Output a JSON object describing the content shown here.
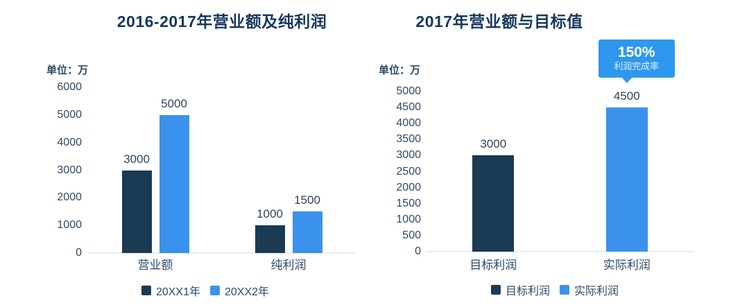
{
  "palette": {
    "background": "#ffffff",
    "title_text": "#17375e",
    "tick_text": "#2c4a6b",
    "data_label_text": "#30435a",
    "axis_line": "#e9ebed",
    "bar_dark_navy": "#1b3a54",
    "bar_light_blue": "#3b92ec",
    "callout_blue": "#2e97ee"
  },
  "chart_data": [
    {
      "type": "bar",
      "title": "2016-2017年营业额及纯利润",
      "unit_label": "单位：万",
      "categories": [
        "营业额",
        "纯利润"
      ],
      "series": [
        {
          "name": "20XX1年",
          "color": "#1b3a54",
          "values": [
            3000,
            1000
          ]
        },
        {
          "name": "20XX2年",
          "color": "#3b92ec",
          "values": [
            5000,
            1500
          ]
        }
      ],
      "legend": [
        {
          "label": "20XX1年",
          "color": "#1b3a54"
        },
        {
          "label": "20XX2年",
          "color": "#3b92ec"
        }
      ],
      "legend_position": "bottom",
      "grid": false,
      "data_labels": true,
      "ylim": [
        0,
        6000
      ],
      "ytick_step": 1000,
      "yticks": [
        "0",
        "1000",
        "2000",
        "3000",
        "4000",
        "5000",
        "6000"
      ]
    },
    {
      "type": "bar",
      "title": "2017年营业额与目标值",
      "unit_label": "单位：万",
      "categories": [
        "目标利润",
        "实际利润"
      ],
      "values": [
        3000,
        4500
      ],
      "bar_colors": [
        "#1b3a54",
        "#3b92ec"
      ],
      "legend": [
        {
          "label": "目标利润",
          "color": "#1b3a54"
        },
        {
          "label": "实际利润",
          "color": "#3b92ec"
        }
      ],
      "legend_position": "bottom",
      "grid": false,
      "data_labels": true,
      "ylim": [
        0,
        5000
      ],
      "ytick_step": 500,
      "yticks": [
        "0",
        "500",
        "1000",
        "1500",
        "2000",
        "2500",
        "3000",
        "3500",
        "4000",
        "4500",
        "5000"
      ],
      "annotation": {
        "rate_text": "150%",
        "caption_text": "利润完成率",
        "target_category": "实际利润",
        "bg_color": "#2e97ee"
      }
    }
  ]
}
